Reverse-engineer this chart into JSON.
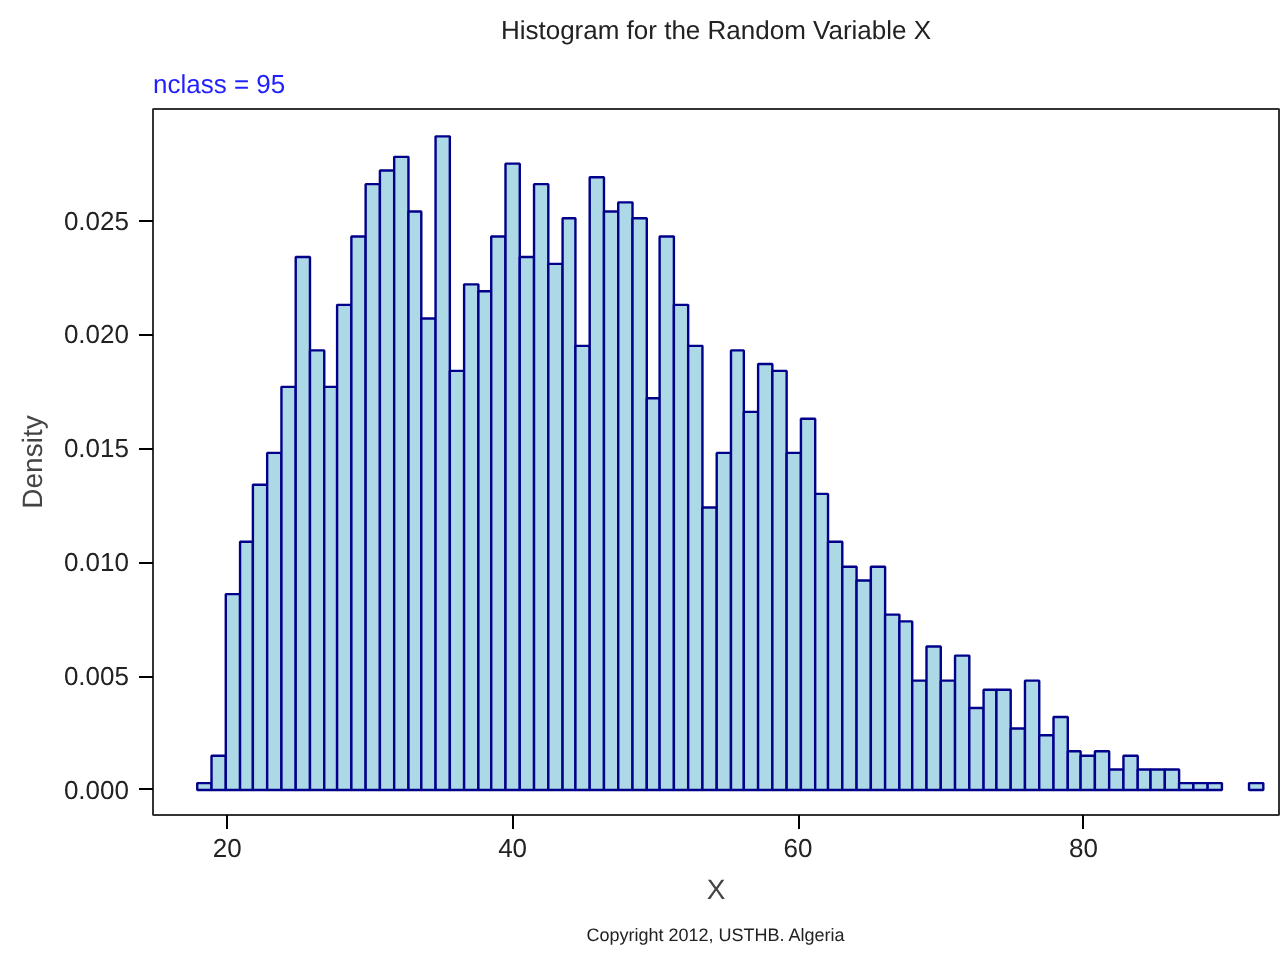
{
  "chart_data": {
    "type": "histogram",
    "title": "Histogram for the Random Variable X",
    "xlabel": "X",
    "ylabel": "Density",
    "annotations": [
      "nclass = 95",
      "Copyright 2012, USTHB. Algeria"
    ],
    "bins": [
      17.9,
      18.9,
      19.9,
      20.9,
      21.8,
      22.8,
      23.8,
      24.8,
      25.8,
      26.8,
      27.7,
      28.7,
      29.7,
      30.7,
      31.7,
      32.7,
      33.6,
      34.6,
      35.6,
      36.6,
      37.6,
      38.5,
      39.5,
      40.5,
      41.5,
      42.5,
      43.5,
      44.4,
      45.4,
      46.4,
      47.4,
      48.4,
      49.4,
      50.3,
      51.3,
      52.3,
      53.3,
      54.3,
      55.3,
      56.2,
      57.2,
      58.2,
      59.2,
      60.2,
      61.2,
      62.1,
      63.1,
      64.1,
      65.1,
      66.1,
      67.1,
      68.0,
      69.0,
      70.0,
      71.0,
      72.0,
      73.0,
      73.9,
      74.9,
      75.9,
      76.9,
      77.9,
      78.9,
      79.8,
      80.8,
      81.8,
      82.8,
      83.8,
      84.7,
      85.7,
      86.7,
      87.7,
      88.7,
      89.7,
      91.6,
      92.6
    ],
    "values": [
      0.0003,
      0.0015,
      0.0086,
      0.0109,
      0.0134,
      0.0148,
      0.0177,
      0.0234,
      0.0193,
      0.0177,
      0.0213,
      0.0243,
      0.0266,
      0.0272,
      0.0278,
      0.0254,
      0.0207,
      0.0287,
      0.0184,
      0.0222,
      0.0219,
      0.0243,
      0.0275,
      0.0234,
      0.0266,
      0.0231,
      0.0251,
      0.0195,
      0.0269,
      0.0254,
      0.0258,
      0.0251,
      0.0172,
      0.0243,
      0.0213,
      0.0195,
      0.0124,
      0.0148,
      0.0193,
      0.0166,
      0.0187,
      0.0184,
      0.0148,
      0.0163,
      0.013,
      0.0109,
      0.0098,
      0.0092,
      0.0098,
      0.0077,
      0.0074,
      0.0048,
      0.0063,
      0.0048,
      0.0059,
      0.0036,
      0.0044,
      0.0044,
      0.0027,
      0.0048,
      0.0024,
      0.0032,
      0.0017,
      0.0015,
      0.0017,
      0.0009,
      0.0015,
      0.0009,
      0.0009,
      0.0009,
      0.0003,
      0.0003,
      0.0003,
      0,
      0.0003
    ],
    "color": "#add8e6",
    "xlim": [
      14.8,
      93.7
    ],
    "ylim": [
      -0.0011,
      0.0299
    ],
    "xticks": [
      20,
      40,
      60,
      80
    ],
    "yticks": [
      {
        "value": 0,
        "label": "0.000"
      },
      {
        "value": 0.005,
        "label": "0.005"
      },
      {
        "value": 0.01,
        "label": "0.010"
      },
      {
        "value": 0.015,
        "label": "0.015"
      },
      {
        "value": 0.02,
        "label": "0.020"
      },
      {
        "value": 0.025,
        "label": "0.025"
      }
    ],
    "grid": false
  }
}
